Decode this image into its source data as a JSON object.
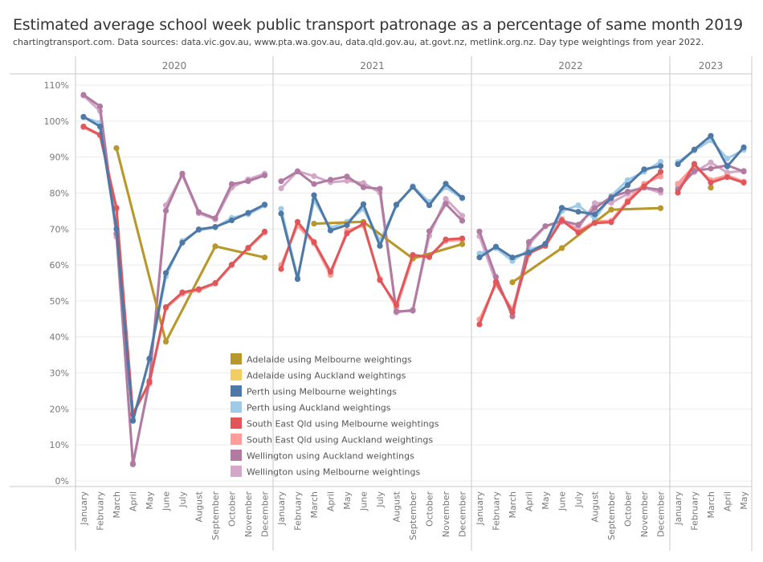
{
  "header": {
    "title": "Estimated average school week public transport patronage as a percentage of same month 2019",
    "subtitle": "chartingtransport.com. Data sources: data.vic.gov.au, www.pta.wa.gov.au, data.qld.gov.au, at.govt.nz, metlink.org.nz. Day type weightings from year 2022."
  },
  "chart_data": {
    "type": "line",
    "title": "Estimated average school week public transport patronage as a percentage of same month 2019",
    "subtitle": "chartingtransport.com. Data sources: data.vic.gov.au, www.pta.wa.gov.au, data.qld.gov.au, at.govt.nz, metlink.org.nz. Day type weightings from year 2022.",
    "xlabel": "",
    "ylabel": "",
    "ylim": [
      0,
      110
    ],
    "yticks": [
      0,
      10,
      20,
      30,
      40,
      50,
      60,
      70,
      80,
      90,
      100,
      110
    ],
    "ytick_labels": [
      "0%",
      "10%",
      "20%",
      "30%",
      "40%",
      "50%",
      "60%",
      "70%",
      "80%",
      "90%",
      "100%",
      "110%"
    ],
    "grid": true,
    "legend_position": "bottom-center",
    "panels": [
      {
        "year": "2020",
        "months": [
          "January",
          "February",
          "March",
          "April",
          "May",
          "June",
          "July",
          "August",
          "September",
          "October",
          "November",
          "December"
        ]
      },
      {
        "year": "2021",
        "months": [
          "January",
          "February",
          "March",
          "April",
          "May",
          "June",
          "July",
          "August",
          "September",
          "October",
          "November",
          "December"
        ]
      },
      {
        "year": "2022",
        "months": [
          "January",
          "February",
          "March",
          "April",
          "May",
          "June",
          "July",
          "August",
          "September",
          "October",
          "November",
          "December"
        ]
      },
      {
        "year": "2023",
        "months": [
          "January",
          "February",
          "March",
          "April",
          "May"
        ]
      }
    ],
    "series": [
      {
        "name": "Adelaide using Melbourne weightings",
        "color": "#b8972c",
        "values": [
          null,
          null,
          92.5,
          null,
          null,
          38.7,
          null,
          null,
          65.2,
          null,
          null,
          62.1,
          null,
          null,
          71.5,
          null,
          null,
          72.0,
          null,
          null,
          61.8,
          null,
          null,
          65.8,
          null,
          null,
          55.2,
          null,
          null,
          64.7,
          null,
          null,
          75.4,
          null,
          null,
          75.8,
          null,
          null,
          81.5,
          null,
          null
        ]
      },
      {
        "name": "Adelaide using Auckland weightings",
        "color": "#f1cd63",
        "values": [
          null,
          null,
          92.5,
          null,
          null,
          38.7,
          null,
          null,
          65.2,
          null,
          null,
          62.1,
          null,
          null,
          71.5,
          null,
          null,
          72.0,
          null,
          null,
          61.8,
          null,
          null,
          65.8,
          null,
          null,
          55.2,
          null,
          null,
          64.7,
          null,
          null,
          75.4,
          null,
          null,
          75.8,
          null,
          null,
          81.5,
          null,
          null
        ]
      },
      {
        "name": "Perth using Melbourne weightings",
        "color": "#4e79a7",
        "values": [
          101.2,
          98.5,
          70.0,
          16.7,
          34.0,
          57.8,
          66.2,
          69.9,
          70.6,
          72.4,
          74.5,
          76.8,
          74.3,
          56.1,
          79.4,
          69.6,
          71.1,
          76.9,
          65.3,
          76.8,
          81.7,
          76.6,
          82.6,
          78.7,
          62.1,
          65.1,
          62.1,
          63.5,
          65.9,
          75.9,
          74.8,
          74.1,
          78.6,
          82.2,
          86.6,
          87.5,
          88.0,
          92.1,
          95.9,
          87.4,
          92.7
        ]
      },
      {
        "name": "Perth using Auckland weightings",
        "color": "#a0cbe8",
        "values": [
          101.0,
          99.6,
          68.9,
          17.2,
          33.6,
          56.8,
          66.7,
          69.7,
          70.4,
          73.1,
          74.1,
          76.5,
          75.6,
          56.5,
          78.0,
          70.3,
          72.0,
          75.6,
          66.8,
          76.5,
          81.9,
          77.5,
          81.6,
          78.5,
          63.2,
          64.7,
          61.1,
          64.3,
          65.5,
          75.0,
          76.6,
          72.8,
          79.2,
          83.6,
          85.9,
          88.7,
          88.6,
          91.8,
          94.7,
          89.6,
          92.0
        ]
      },
      {
        "name": "South East Qld using Melbourne weightings",
        "color": "#e15759",
        "values": [
          98.5,
          96.2,
          75.9,
          18.5,
          27.4,
          48.3,
          52.4,
          53.3,
          55.0,
          60.1,
          64.8,
          69.3,
          58.9,
          72.0,
          66.4,
          58.1,
          68.8,
          71.5,
          55.8,
          48.9,
          62.8,
          62.2,
          67.1,
          67.4,
          43.5,
          55.3,
          46.8,
          63.3,
          65.3,
          72.4,
          69.0,
          71.7,
          71.9,
          77.5,
          81.9,
          85.9,
          80.1,
          88.1,
          82.9,
          84.4,
          82.9
        ]
      },
      {
        "name": "South East Qld using Auckland weightings",
        "color": "#ff9d9a",
        "values": [
          98.3,
          96.0,
          75.5,
          18.8,
          27.0,
          48.0,
          52.0,
          53.0,
          54.8,
          60.0,
          64.6,
          69.0,
          60.0,
          71.0,
          66.0,
          57.2,
          69.6,
          71.0,
          56.2,
          48.1,
          62.1,
          62.6,
          66.7,
          67.0,
          44.9,
          54.6,
          47.6,
          63.0,
          65.8,
          72.8,
          69.4,
          72.1,
          72.3,
          78.0,
          82.6,
          84.6,
          82.6,
          87.6,
          83.6,
          84.9,
          83.2
        ]
      },
      {
        "name": "Wellington using Auckland weightings",
        "color": "#b07aa1",
        "values": [
          107.3,
          104.1,
          68.7,
          4.6,
          27.8,
          75.1,
          85.4,
          74.7,
          73.0,
          82.5,
          83.3,
          84.9,
          83.3,
          86.0,
          82.5,
          83.7,
          84.6,
          81.6,
          81.2,
          47.1,
          47.3,
          69.4,
          77.0,
          72.3,
          69.3,
          56.7,
          45.7,
          66.4,
          70.8,
          72.3,
          71.2,
          75.8,
          78.9,
          80.4,
          81.5,
          80.9,
          81.0,
          86.2,
          86.8,
          87.7,
          86.0
        ]
      },
      {
        "name": "Wellington using Melbourne weightings",
        "color": "#d4a6c8",
        "values": [
          107.1,
          102.8,
          67.8,
          5.0,
          27.2,
          76.6,
          85.0,
          74.4,
          72.7,
          81.5,
          83.8,
          85.4,
          81.3,
          86.1,
          84.7,
          83.0,
          83.4,
          82.8,
          80.1,
          46.8,
          47.6,
          68.1,
          78.4,
          73.7,
          68.0,
          55.3,
          47.0,
          65.6,
          70.8,
          72.0,
          70.1,
          77.2,
          77.3,
          79.8,
          81.5,
          80.1,
          82.1,
          85.8,
          88.5,
          85.7,
          86.2
        ]
      }
    ]
  },
  "legend": {
    "items": [
      {
        "label": "Adelaide using Melbourne weightings",
        "color": "#b8972c"
      },
      {
        "label": "Adelaide using Auckland weightings",
        "color": "#f1cd63"
      },
      {
        "label": "Perth using Melbourne weightings",
        "color": "#4e79a7"
      },
      {
        "label": "Perth using Auckland weightings",
        "color": "#a0cbe8"
      },
      {
        "label": "South East Qld using Melbourne weightings",
        "color": "#e15759"
      },
      {
        "label": "South East Qld using Auckland weightings",
        "color": "#ff9d9a"
      },
      {
        "label": "Wellington using Auckland weightings",
        "color": "#b07aa1"
      },
      {
        "label": "Wellington using Melbourne weightings",
        "color": "#d4a6c8"
      }
    ]
  }
}
